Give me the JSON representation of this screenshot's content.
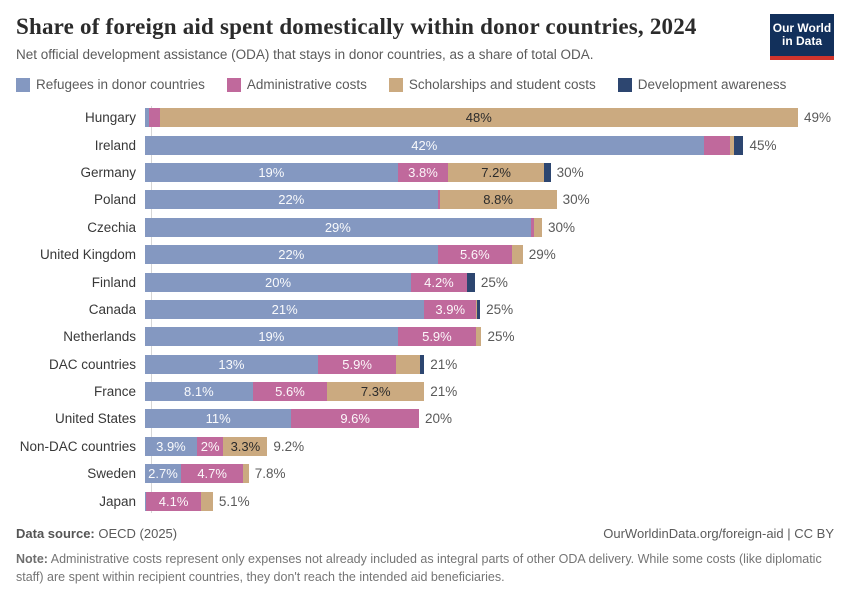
{
  "header": {
    "title": "Share of foreign aid spent domestically within donor countries, 2024",
    "subtitle": "Net official development assistance (ODA) that stays in donor countries, as a share of total ODA.",
    "logo_line1": "Our World",
    "logo_line2": "in Data",
    "logo_bg_color": "#12305b",
    "logo_accent_color": "#d0342c"
  },
  "legend": [
    {
      "key": "refugees",
      "label": "Refugees in donor countries",
      "color": "#8498c1"
    },
    {
      "key": "admin",
      "label": "Administrative costs",
      "color": "#c0699c"
    },
    {
      "key": "scholarships",
      "label": "Scholarships and student costs",
      "color": "#cbaa80"
    },
    {
      "key": "awareness",
      "label": "Development awareness",
      "color": "#2d4670"
    }
  ],
  "chart_data": {
    "type": "bar",
    "orientation": "horizontal",
    "stacked": true,
    "unit": "%",
    "grid": false,
    "xlim": [
      0,
      50
    ],
    "series_names": [
      "Refugees in donor countries",
      "Administrative costs",
      "Scholarships and student costs",
      "Development awareness"
    ],
    "categories": [
      "Hungary",
      "Ireland",
      "Germany",
      "Poland",
      "Czechia",
      "United Kingdom",
      "Finland",
      "Canada",
      "Netherlands",
      "DAC countries",
      "France",
      "United States",
      "Non-DAC countries",
      "Sweden",
      "Japan"
    ],
    "rows": [
      {
        "country": "Hungary",
        "values": [
          0.3,
          0.8,
          48,
          0
        ],
        "segment_labels": [
          "",
          "",
          "48%",
          ""
        ],
        "total": "49%"
      },
      {
        "country": "Ireland",
        "values": [
          42,
          2.0,
          0.3,
          0.7
        ],
        "segment_labels": [
          "42%",
          "",
          "",
          ""
        ],
        "total": "45%"
      },
      {
        "country": "Germany",
        "values": [
          19,
          3.8,
          7.2,
          0.5
        ],
        "segment_labels": [
          "19%",
          "3.8%",
          "7.2%",
          ""
        ],
        "total": "30%"
      },
      {
        "country": "Poland",
        "values": [
          22,
          0.15,
          8.8,
          0
        ],
        "segment_labels": [
          "22%",
          "",
          "8.8%",
          ""
        ],
        "total": "30%"
      },
      {
        "country": "Czechia",
        "values": [
          29,
          0.25,
          0.6,
          0
        ],
        "segment_labels": [
          "29%",
          "",
          "",
          ""
        ],
        "total": "30%"
      },
      {
        "country": "United Kingdom",
        "values": [
          22,
          5.6,
          0.8,
          0
        ],
        "segment_labels": [
          "22%",
          "5.6%",
          "",
          ""
        ],
        "total": "29%"
      },
      {
        "country": "Finland",
        "values": [
          20,
          4.2,
          0,
          0.6
        ],
        "segment_labels": [
          "20%",
          "4.2%",
          "",
          ""
        ],
        "total": "25%"
      },
      {
        "country": "Canada",
        "values": [
          21,
          3.9,
          0.1,
          0.2
        ],
        "segment_labels": [
          "21%",
          "3.9%",
          "",
          ""
        ],
        "total": "25%"
      },
      {
        "country": "Netherlands",
        "values": [
          19,
          5.9,
          0.4,
          0
        ],
        "segment_labels": [
          "19%",
          "5.9%",
          "",
          ""
        ],
        "total": "25%"
      },
      {
        "country": "DAC countries",
        "values": [
          13,
          5.9,
          1.8,
          0.3
        ],
        "segment_labels": [
          "13%",
          "5.9%",
          "",
          ""
        ],
        "total": "21%"
      },
      {
        "country": "France",
        "values": [
          8.1,
          5.6,
          7.3,
          0
        ],
        "segment_labels": [
          "8.1%",
          "5.6%",
          "7.3%",
          ""
        ],
        "total": "21%"
      },
      {
        "country": "United States",
        "values": [
          11,
          9.6,
          0,
          0
        ],
        "segment_labels": [
          "11%",
          "9.6%",
          "",
          ""
        ],
        "total": "20%"
      },
      {
        "country": "Non-DAC countries",
        "values": [
          3.9,
          2,
          3.3,
          0
        ],
        "segment_labels": [
          "3.9%",
          "2%",
          "3.3%",
          ""
        ],
        "total": "9.2%"
      },
      {
        "country": "Sweden",
        "values": [
          2.7,
          4.7,
          0.4,
          0
        ],
        "segment_labels": [
          "2.7%",
          "4.7%",
          "",
          ""
        ],
        "total": "7.8%"
      },
      {
        "country": "Japan",
        "values": [
          0.1,
          4.1,
          0.9,
          0
        ],
        "segment_labels": [
          "",
          "4.1%",
          "",
          ""
        ],
        "total": "5.1%"
      }
    ]
  },
  "footer": {
    "source_label": "Data source:",
    "source_value": " OECD (2025)",
    "link": "OurWorldinData.org/foreign-aid | CC BY",
    "note_label": "Note:",
    "note_text": " Administrative costs represent only expenses not already included as integral parts of other ODA delivery. While some costs (like diplomatic staff) are spent within recipient countries, they don't reach the intended aid beneficiaries."
  }
}
